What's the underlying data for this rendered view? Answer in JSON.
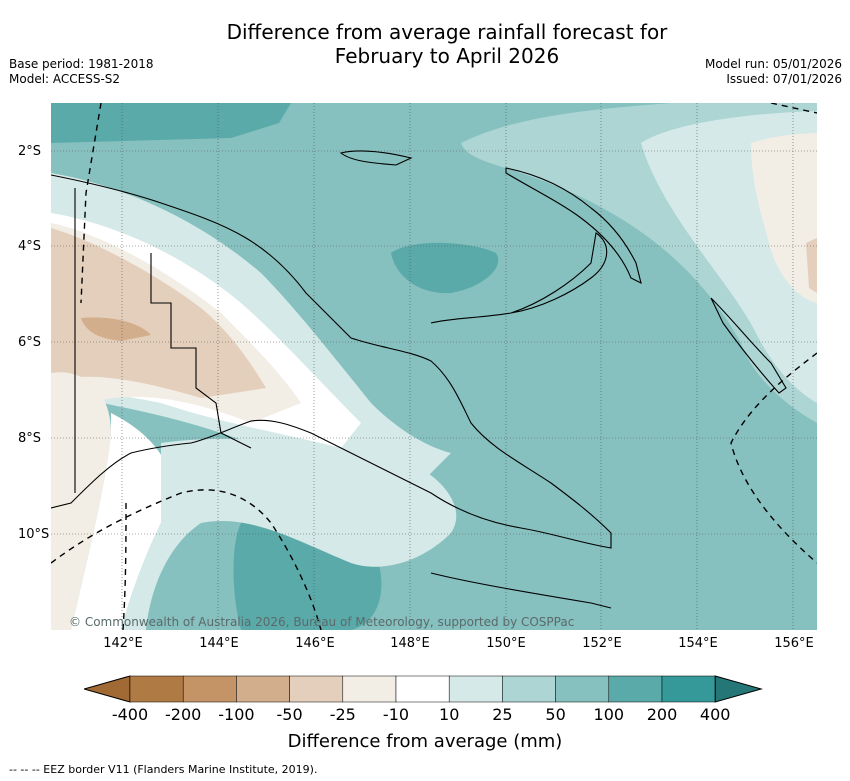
{
  "title_line1": "Difference from average rainfall forecast for",
  "title_line2": "February to April 2026",
  "base_period": "Base period: 1981-2018",
  "model": "Model: ACCESS-S2",
  "model_run": "Model run: 05/01/2026",
  "issued": "Issued: 07/01/2026",
  "latitudes": [
    "2°S",
    "4°S",
    "6°S",
    "8°S",
    "10°S"
  ],
  "longitudes": [
    "142°E",
    "144°E",
    "146°E",
    "148°E",
    "150°E",
    "152°E",
    "154°E",
    "156°E"
  ],
  "credit": "© Commonwealth of Australia 2026, Bureau of Meteorology, supported by COSPPac",
  "colorbar": {
    "ticks": [
      "-400",
      "-200",
      "-100",
      "-50",
      "-25",
      "-10",
      "10",
      "25",
      "50",
      "100",
      "200",
      "400"
    ],
    "colors": [
      "#a16a34",
      "#b07a45",
      "#c49467",
      "#d3ae8d",
      "#e4cfbc",
      "#f2ede5",
      "#ffffff",
      "#d5e9e8",
      "#acd5d4",
      "#86c0bf",
      "#5aaaa9",
      "#35999a",
      "#257677"
    ],
    "label": "Difference from average (mm)"
  },
  "legend_note": "-- -- -- EEZ border V11 (Flanders Marine Institute, 2019)."
}
